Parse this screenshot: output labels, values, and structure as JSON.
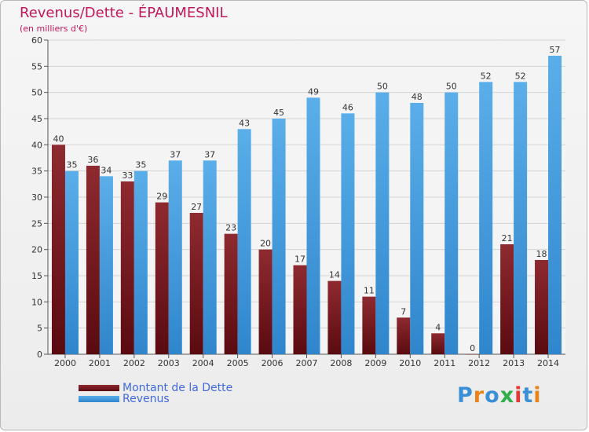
{
  "header": {
    "title": "Revenus/Dette - ÉPAUMESNIL",
    "subtitle": "(en milliers d'€)"
  },
  "legend": {
    "debt": "Montant de la Dette",
    "revenue": "Revenus"
  },
  "brand": "Proxiti",
  "colors": {
    "debt": "#7b1d22",
    "revenue": "#4ea6e6",
    "title": "#c2185b",
    "legend_text": "#4169e1"
  },
  "chart_data": {
    "type": "bar",
    "categories": [
      "2000",
      "2001",
      "2002",
      "2003",
      "2004",
      "2005",
      "2006",
      "2007",
      "2008",
      "2009",
      "2010",
      "2011",
      "2012",
      "2013",
      "2014"
    ],
    "series": [
      {
        "name": "Montant de la Dette",
        "values": [
          40,
          36,
          33,
          29,
          27,
          23,
          20,
          17,
          14,
          11,
          7,
          4,
          0,
          21,
          18
        ]
      },
      {
        "name": "Revenus",
        "values": [
          35,
          34,
          35,
          37,
          37,
          43,
          45,
          49,
          46,
          50,
          48,
          50,
          52,
          52,
          57
        ]
      }
    ],
    "ylim": [
      0,
      60
    ],
    "yticks": [
      0,
      5,
      10,
      15,
      20,
      25,
      30,
      35,
      40,
      45,
      50,
      55,
      60
    ],
    "grid": true
  }
}
